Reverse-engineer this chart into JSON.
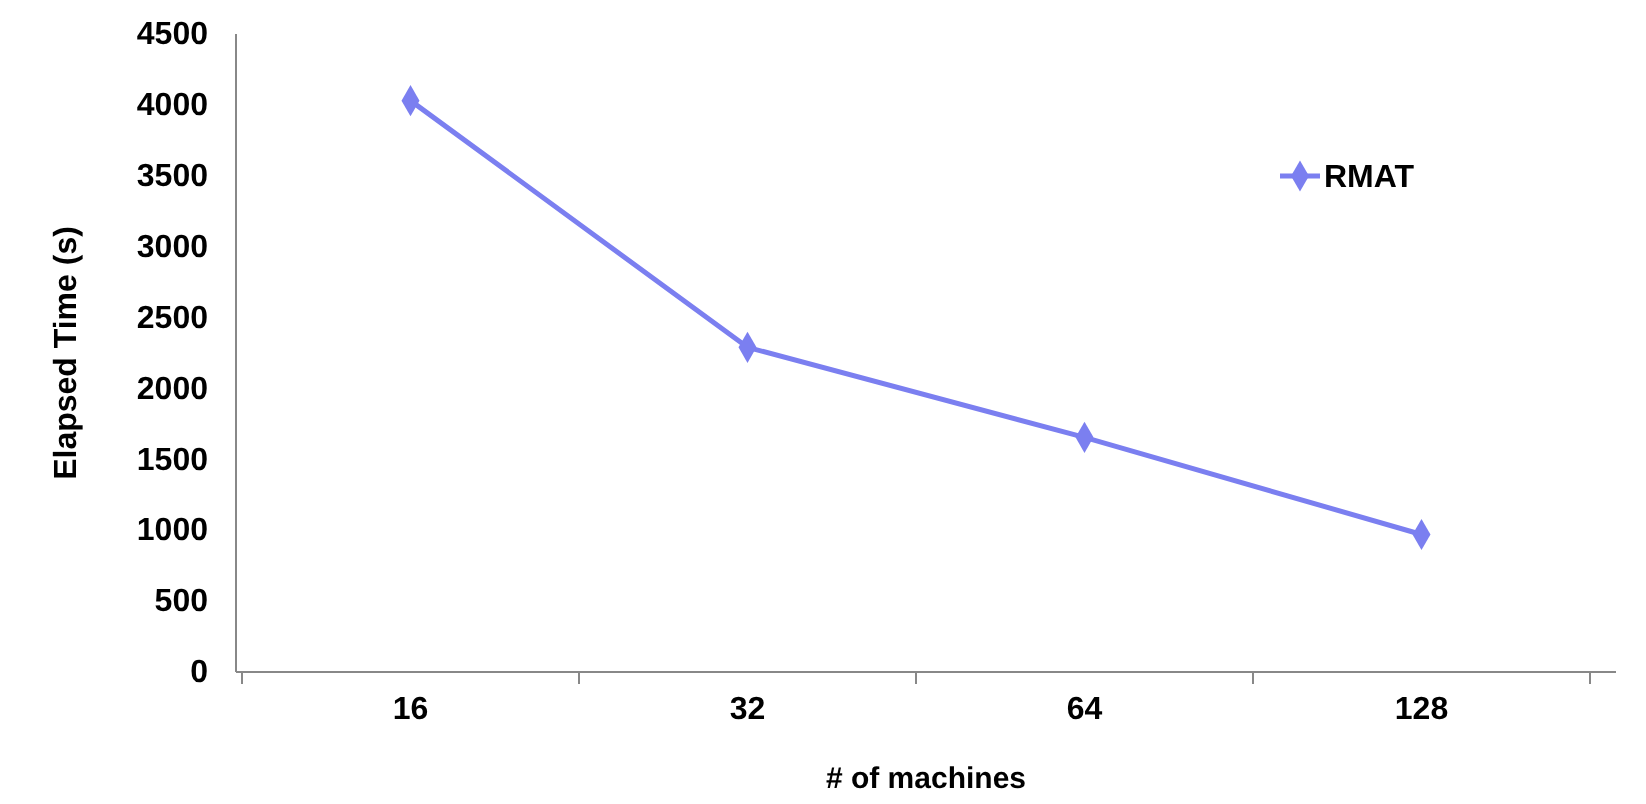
{
  "chart_data": {
    "type": "line",
    "xlabel": "# of machines",
    "ylabel": "Elapsed Time (s)",
    "categories": [
      "16",
      "32",
      "64",
      "128"
    ],
    "series": [
      {
        "name": "RMAT",
        "color": "#7b7ff0",
        "values": [
          4030,
          2290,
          1655,
          970
        ]
      }
    ],
    "ylim": [
      0,
      4500
    ],
    "yticks": [
      0,
      500,
      1000,
      1500,
      2000,
      2500,
      3000,
      3500,
      4000,
      4500
    ],
    "grid": false,
    "legend": "top right",
    "marker": "diamond",
    "line_style": "solid"
  }
}
